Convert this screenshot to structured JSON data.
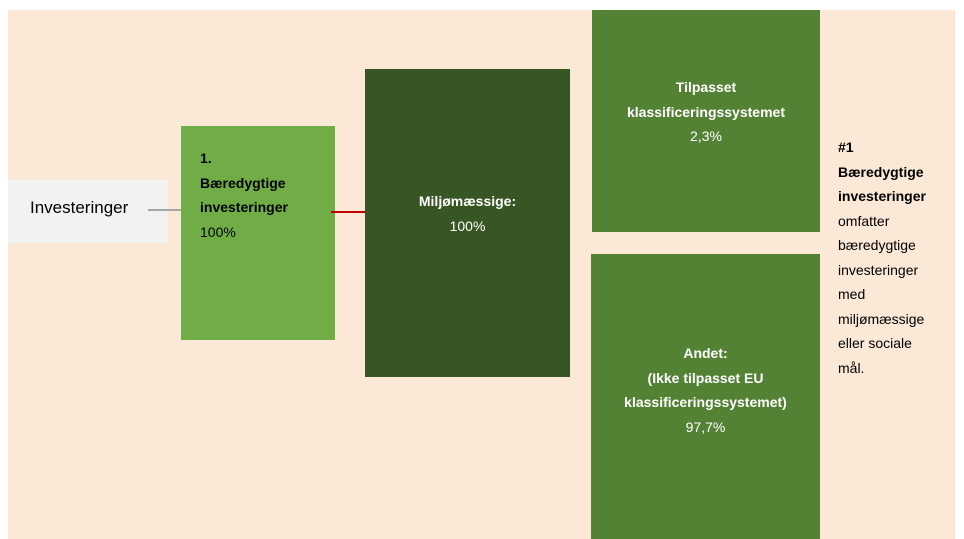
{
  "nodes": [
    {
      "label": "Investeringer"
    },
    {
      "title": [
        "1.",
        "Bæredygtige",
        "investeringer"
      ],
      "value": "100%"
    },
    {
      "title": [
        "Miljømæssige:"
      ],
      "value": "100%"
    },
    {
      "title": [
        "Tilpasset",
        "klassificeringssystemet"
      ],
      "value": "2,3%"
    },
    {
      "title": [
        "Andet:",
        "(Ikke tilpasset EU",
        "klassificeringssystemet)"
      ],
      "value": "97,7%"
    }
  ],
  "note": {
    "bold": [
      "#1",
      "Bæredygtige",
      "investeringer"
    ],
    "text": [
      "omfatter",
      "bæredygtige",
      "investeringer",
      "med",
      "miljømæssige",
      "eller sociale",
      "mål."
    ]
  }
}
